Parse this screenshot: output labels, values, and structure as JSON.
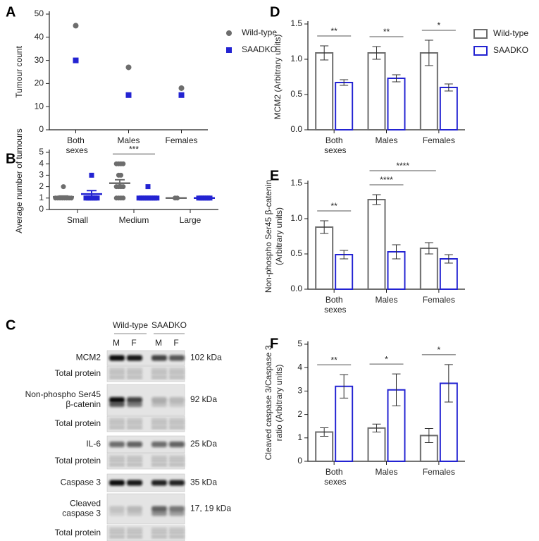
{
  "chart_data": [
    {
      "panel": "A",
      "type": "scatter",
      "ylabel": "Tumour count",
      "categories": [
        "Both sexes",
        "Males",
        "Females"
      ],
      "series": [
        {
          "name": "Wild-type",
          "color": "#6d6d6d",
          "marker": "circle",
          "values": [
            45,
            27,
            18
          ]
        },
        {
          "name": "SAADKO",
          "color": "#2323d2",
          "marker": "square",
          "values": [
            30,
            15,
            15
          ]
        }
      ],
      "ylim": [
        0,
        50
      ],
      "yticks": [
        0,
        10,
        20,
        30,
        40,
        50
      ],
      "legend": "right"
    },
    {
      "panel": "B",
      "type": "dot",
      "ylabel": "Average number of tumours",
      "categories": [
        "Small",
        "Medium",
        "Large"
      ],
      "series": [
        {
          "color": "#6d6d6d",
          "marker": "circle",
          "points": [
            [
              1,
              1,
              1,
              1,
              1,
              1,
              1,
              1,
              2
            ],
            [
              4,
              4,
              4,
              4,
              3,
              3,
              2,
              2,
              2,
              2,
              1,
              1,
              1,
              1
            ],
            [
              1,
              1
            ]
          ],
          "values": [
            1.1,
            2.3,
            1
          ],
          "errors": [
            0.08,
            0.3,
            0
          ]
        },
        {
          "color": "#2323d2",
          "marker": "square",
          "points": [
            [
              1,
              1,
              1,
              1,
              1,
              1,
              3
            ],
            [
              1,
              1,
              1,
              1,
              1,
              1,
              1,
              1,
              1,
              2
            ],
            [
              1,
              1,
              1,
              1,
              1,
              1
            ]
          ],
          "values": [
            1.35,
            1.08,
            1
          ],
          "errors": [
            0.3,
            0.06,
            0
          ]
        }
      ],
      "ylim": [
        0,
        5
      ],
      "yticks": [
        0,
        1,
        2,
        3,
        4,
        5
      ],
      "annotations": [
        {
          "text": "***",
          "from": [
            1,
            0
          ],
          "to": [
            1,
            1
          ]
        }
      ]
    },
    {
      "panel": "D",
      "type": "bar",
      "ylabel": "MCM2 (Arbitrary units)",
      "categories": [
        "Both sexes",
        "Males",
        "Females"
      ],
      "series": [
        {
          "name": "Wild-type",
          "color": "#6d6d6d",
          "values": [
            1.09,
            1.09,
            1.09
          ],
          "errors": [
            0.1,
            0.09,
            0.18
          ]
        },
        {
          "name": "SAADKO",
          "color": "#2323d2",
          "values": [
            0.67,
            0.73,
            0.6
          ],
          "errors": [
            0.04,
            0.05,
            0.05
          ]
        }
      ],
      "ylim": [
        0,
        1.5
      ],
      "yticks": [
        {
          "value": 0,
          "label": "0.0"
        },
        {
          "value": 0.5,
          "label": "0.5"
        },
        {
          "value": 1,
          "label": "1.0"
        },
        {
          "value": 1.5,
          "label": "1.5"
        }
      ],
      "legend": "right",
      "annotations": [
        {
          "text": "**",
          "from": [
            0,
            0
          ],
          "to": [
            0,
            1
          ]
        },
        {
          "text": "**",
          "from": [
            1,
            0
          ],
          "to": [
            1,
            1
          ]
        },
        {
          "text": "*",
          "from": [
            2,
            0
          ],
          "to": [
            2,
            1
          ]
        }
      ]
    },
    {
      "panel": "E",
      "type": "bar",
      "ylabel": [
        "Non-phospho Ser45 β-catenin",
        "(Arbitrary units)"
      ],
      "categories": [
        "Both sexes",
        "Males",
        "Females"
      ],
      "series": [
        {
          "name": "Wild-type",
          "color": "#6d6d6d",
          "values": [
            0.88,
            1.27,
            0.58
          ],
          "errors": [
            0.09,
            0.07,
            0.08
          ]
        },
        {
          "name": "SAADKO",
          "color": "#2323d2",
          "values": [
            0.49,
            0.53,
            0.43
          ],
          "errors": [
            0.06,
            0.1,
            0.06
          ]
        }
      ],
      "ylim": [
        0,
        1.5
      ],
      "yticks": [
        {
          "value": 0,
          "label": "0.0"
        },
        {
          "value": 0.5,
          "label": "0.5"
        },
        {
          "value": 1,
          "label": "1.0"
        },
        {
          "value": 1.5,
          "label": "1.5"
        }
      ],
      "annotations": [
        {
          "text": "**",
          "from": [
            0,
            0
          ],
          "to": [
            0,
            1
          ]
        },
        {
          "text": "****",
          "from": [
            1,
            0
          ],
          "to": [
            1,
            1
          ]
        },
        {
          "text": "****",
          "from": [
            1,
            0
          ],
          "to": [
            2,
            0
          ]
        }
      ]
    },
    {
      "panel": "F",
      "type": "bar",
      "ylabel": [
        "Cleaved caspase 3/Caspase 3",
        "ratio (Arbitrary units)"
      ],
      "categories": [
        "Both sexes",
        "Males",
        "Females"
      ],
      "series": [
        {
          "name": "Wild-type",
          "color": "#6d6d6d",
          "values": [
            1.25,
            1.42,
            1.1
          ],
          "errors": [
            0.18,
            0.17,
            0.3
          ]
        },
        {
          "name": "SAADKO",
          "color": "#2323d2",
          "values": [
            3.2,
            3.05,
            3.33
          ],
          "errors": [
            0.5,
            0.68,
            0.8
          ]
        }
      ],
      "ylim": [
        0,
        5
      ],
      "yticks": [
        0,
        1,
        2,
        3,
        4,
        5
      ],
      "annotations": [
        {
          "text": "**",
          "from": [
            0,
            0
          ],
          "to": [
            0,
            1
          ]
        },
        {
          "text": "*",
          "from": [
            1,
            0
          ],
          "to": [
            1,
            1
          ]
        },
        {
          "text": "*",
          "from": [
            2,
            0
          ],
          "to": [
            2,
            1
          ]
        }
      ]
    }
  ],
  "blot": {
    "panel": "C",
    "groups": [
      "Wild-type",
      "SAADKO"
    ],
    "lanes": [
      "M",
      "F",
      "M",
      "F"
    ],
    "rows": [
      {
        "label": [
          "MCM2"
        ],
        "size": "102 kDa"
      },
      {
        "label": [
          "Total protein"
        ]
      },
      {
        "label": [
          "Non-phospho Ser45",
          "β-catenin"
        ],
        "size": "92 kDa"
      },
      {
        "label": [
          "Total protein"
        ]
      },
      {
        "label": [
          "IL-6"
        ],
        "size": "25 kDa"
      },
      {
        "label": [
          "Total protein"
        ]
      },
      {
        "label": [
          "Caspase 3"
        ],
        "size": "35 kDa"
      },
      {
        "label": [
          "Cleaved",
          "caspase 3"
        ],
        "size": "17, 19 kDa"
      },
      {
        "label": [
          "Total protein"
        ]
      }
    ]
  }
}
